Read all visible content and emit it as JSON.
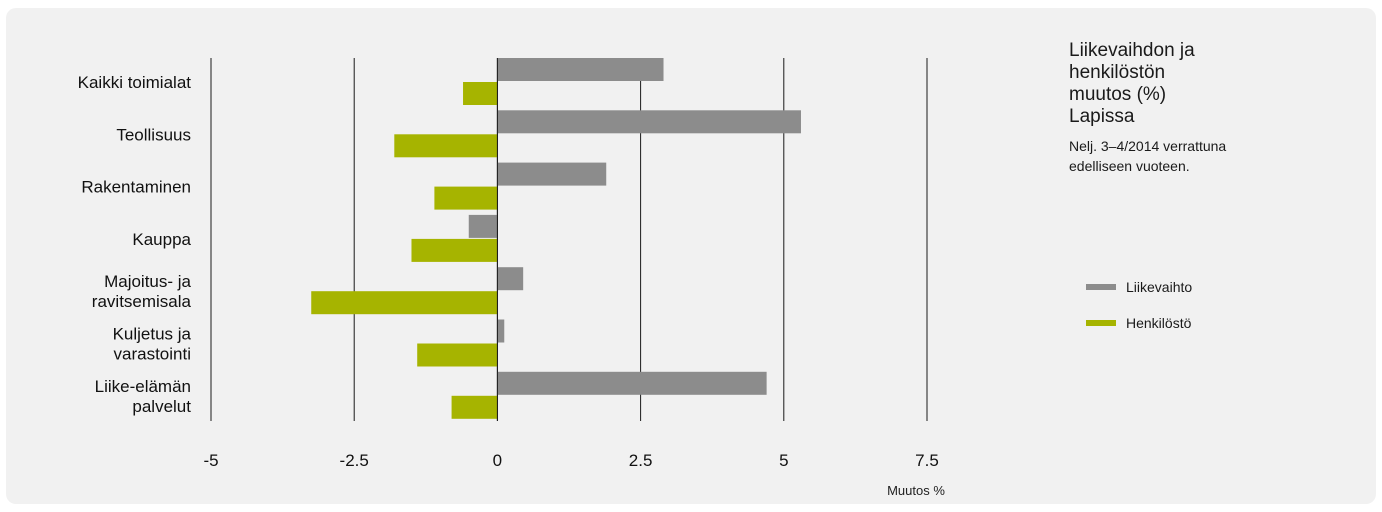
{
  "chart_data": {
    "type": "bar",
    "orientation": "horizontal",
    "categories": [
      [
        "Kaikki toimialat"
      ],
      [
        "Teollisuus"
      ],
      [
        "Rakentaminen"
      ],
      [
        "Kauppa"
      ],
      [
        "Majoitus- ja",
        "ravitsemisala"
      ],
      [
        "Kuljetus ja",
        "varastointi"
      ],
      [
        "Liike-elämän",
        "palvelut"
      ]
    ],
    "series": [
      {
        "name": "Liikevaihto",
        "color": "#8c8c8c",
        "values": [
          2.9,
          5.3,
          1.9,
          -0.5,
          0.45,
          0.12,
          4.7
        ]
      },
      {
        "name": "Henkilöstö",
        "color": "#a6b400",
        "values": [
          -0.6,
          -1.8,
          -1.1,
          -1.5,
          -3.25,
          -1.4,
          -0.8
        ]
      }
    ],
    "xlim": [
      -5,
      7.5
    ],
    "xticks": [
      -5,
      -2.5,
      0,
      2.5,
      5,
      7.5
    ],
    "xtick_labels": [
      "-5",
      "-2.5",
      "0",
      "2.5",
      "5",
      "7.5"
    ],
    "xlabel": "Muutos %",
    "grid": "vertical",
    "legend_position": "right"
  },
  "sidebar": {
    "title": "Liikevaihdon ja henkilöstön muutos (%) Lapissa",
    "subtitle": "Nelj. 3–4/2014 verrattuna edelliseen vuoteen."
  },
  "legend": [
    {
      "label": "Liikevaihto",
      "color": "#8c8c8c"
    },
    {
      "label": "Henkilöstö",
      "color": "#a6b400"
    }
  ]
}
